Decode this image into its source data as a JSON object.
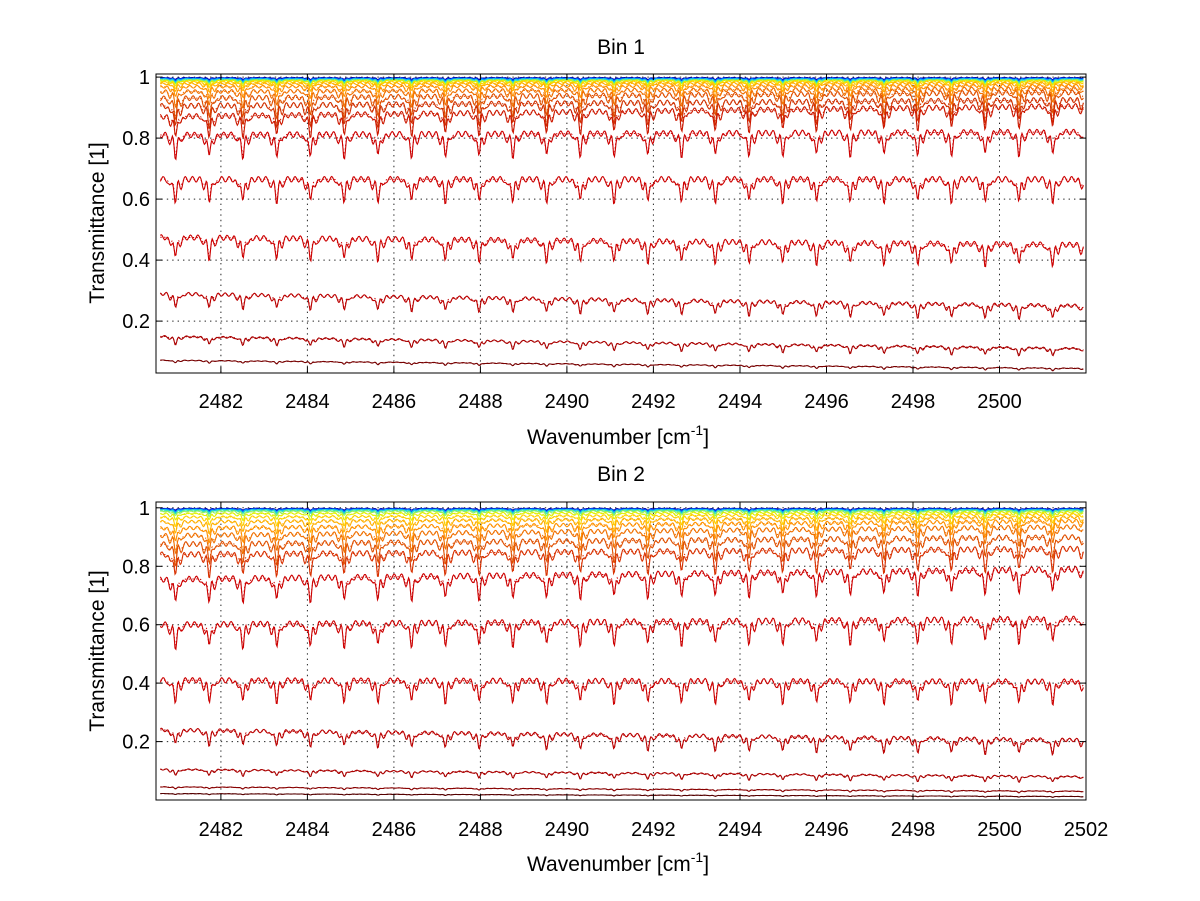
{
  "chart_data": [
    {
      "type": "line",
      "title": "Bin 1",
      "xlabel": "Wavenumber [cm",
      "xlabel_sup": "-1",
      "xlabel_suffix": "]",
      "ylabel": "Transmittance [1]",
      "xlim": [
        2480.5,
        2502.0
      ],
      "ylim": [
        0.03,
        1.01
      ],
      "xticks": [
        2482,
        2484,
        2486,
        2488,
        2490,
        2492,
        2494,
        2496,
        2498,
        2500
      ],
      "yticks": [
        0.2,
        0.4,
        0.6,
        0.8,
        1
      ],
      "ytick_labels": [
        "0.2",
        "0.4",
        "0.6",
        "0.8",
        "1"
      ],
      "grid": true,
      "line_spacing_cm-1": 0.78,
      "series_note": "observed spectra (solid) with fitted model (dotted), colored blue→red with decreasing transmittance",
      "series": [
        {
          "color": "#0000aa",
          "level_start": 0.998,
          "level_end": 0.998,
          "depth": 0.006
        },
        {
          "color": "#0050ff",
          "level_start": 0.996,
          "level_end": 0.996,
          "depth": 0.008
        },
        {
          "color": "#00b0ff",
          "level_start": 0.994,
          "level_end": 0.994,
          "depth": 0.01
        },
        {
          "color": "#30e0c0",
          "level_start": 0.992,
          "level_end": 0.992,
          "depth": 0.012
        },
        {
          "color": "#90f060",
          "level_start": 0.99,
          "level_end": 0.99,
          "depth": 0.014
        },
        {
          "color": "#e0f000",
          "level_start": 0.988,
          "level_end": 0.988,
          "depth": 0.016
        },
        {
          "color": "#ffd000",
          "level_start": 0.984,
          "level_end": 0.985,
          "depth": 0.02
        },
        {
          "color": "#ffb000",
          "level_start": 0.978,
          "level_end": 0.98,
          "depth": 0.026
        },
        {
          "color": "#ff9000",
          "level_start": 0.968,
          "level_end": 0.972,
          "depth": 0.036
        },
        {
          "color": "#f07000",
          "level_start": 0.952,
          "level_end": 0.962,
          "depth": 0.05
        },
        {
          "color": "#e05000",
          "level_start": 0.93,
          "level_end": 0.95,
          "depth": 0.065
        },
        {
          "color": "#d03000",
          "level_start": 0.905,
          "level_end": 0.925,
          "depth": 0.07
        },
        {
          "color": "#cc1800",
          "level_start": 0.87,
          "level_end": 0.905,
          "depth": 0.07
        },
        {
          "color": "#cc0000",
          "level_start": 0.81,
          "level_end": 0.82,
          "depth": 0.075
        },
        {
          "color": "#cc0000",
          "level_start": 0.665,
          "level_end": 0.665,
          "depth": 0.075
        },
        {
          "color": "#cc0000",
          "level_start": 0.475,
          "level_end": 0.45,
          "depth": 0.07
        },
        {
          "color": "#bb0000",
          "level_start": 0.29,
          "level_end": 0.25,
          "depth": 0.045
        },
        {
          "color": "#aa0000",
          "level_start": 0.15,
          "level_end": 0.11,
          "depth": 0.025
        },
        {
          "color": "#770000",
          "level_start": 0.072,
          "level_end": 0.045,
          "depth": 0.008
        }
      ]
    },
    {
      "type": "line",
      "title": "Bin 2",
      "xlabel": "Wavenumber [cm",
      "xlabel_sup": "-1",
      "xlabel_suffix": "]",
      "ylabel": "Transmittance [1]",
      "xlim": [
        2480.5,
        2502.0
      ],
      "ylim": [
        0.0,
        1.02
      ],
      "xticks": [
        2482,
        2484,
        2486,
        2488,
        2490,
        2492,
        2494,
        2496,
        2498,
        2500,
        2502
      ],
      "yticks": [
        0.2,
        0.4,
        0.6,
        0.8,
        1
      ],
      "ytick_labels": [
        "0.2",
        "0.4",
        "0.6",
        "0.8",
        "1"
      ],
      "grid": true,
      "line_spacing_cm-1": 0.78,
      "series_note": "observed spectra (solid) with fitted model (dotted), colored blue→red with decreasing transmittance",
      "series": [
        {
          "color": "#0000aa",
          "level_start": 0.998,
          "level_end": 0.998,
          "depth": 0.006
        },
        {
          "color": "#0050ff",
          "level_start": 0.996,
          "level_end": 0.996,
          "depth": 0.008
        },
        {
          "color": "#00b0ff",
          "level_start": 0.994,
          "level_end": 0.994,
          "depth": 0.01
        },
        {
          "color": "#30e0c0",
          "level_start": 0.992,
          "level_end": 0.992,
          "depth": 0.012
        },
        {
          "color": "#90f060",
          "level_start": 0.988,
          "level_end": 0.99,
          "depth": 0.016
        },
        {
          "color": "#e0f000",
          "level_start": 0.98,
          "level_end": 0.985,
          "depth": 0.022
        },
        {
          "color": "#ffd000",
          "level_start": 0.968,
          "level_end": 0.978,
          "depth": 0.03
        },
        {
          "color": "#ffb000",
          "level_start": 0.952,
          "level_end": 0.968,
          "depth": 0.04
        },
        {
          "color": "#ff9000",
          "level_start": 0.93,
          "level_end": 0.955,
          "depth": 0.05
        },
        {
          "color": "#f07000",
          "level_start": 0.905,
          "level_end": 0.935,
          "depth": 0.06
        },
        {
          "color": "#e05000",
          "level_start": 0.875,
          "level_end": 0.9,
          "depth": 0.07
        },
        {
          "color": "#d83000",
          "level_start": 0.84,
          "level_end": 0.86,
          "depth": 0.075
        },
        {
          "color": "#cc0000",
          "level_start": 0.755,
          "level_end": 0.79,
          "depth": 0.08
        },
        {
          "color": "#cc0000",
          "level_start": 0.6,
          "level_end": 0.62,
          "depth": 0.08
        },
        {
          "color": "#cc0000",
          "level_start": 0.41,
          "level_end": 0.405,
          "depth": 0.075
        },
        {
          "color": "#bb0000",
          "level_start": 0.24,
          "level_end": 0.205,
          "depth": 0.05
        },
        {
          "color": "#aa0000",
          "level_start": 0.105,
          "level_end": 0.08,
          "depth": 0.02
        },
        {
          "color": "#880000",
          "level_start": 0.045,
          "level_end": 0.03,
          "depth": 0.006
        },
        {
          "color": "#550000",
          "level_start": 0.022,
          "level_end": 0.012,
          "depth": 0.003
        }
      ]
    }
  ]
}
